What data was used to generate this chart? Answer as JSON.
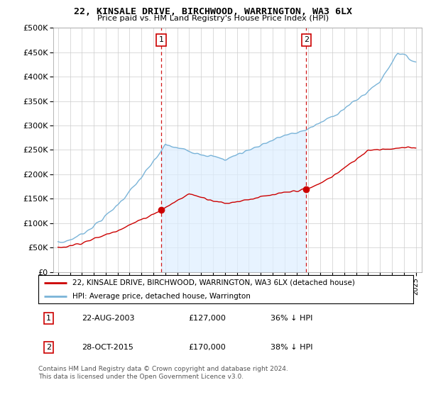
{
  "title": "22, KINSALE DRIVE, BIRCHWOOD, WARRINGTON, WA3 6LX",
  "subtitle": "Price paid vs. HM Land Registry's House Price Index (HPI)",
  "ylim": [
    0,
    500000
  ],
  "yticks": [
    0,
    50000,
    100000,
    150000,
    200000,
    250000,
    300000,
    350000,
    400000,
    450000,
    500000
  ],
  "ytick_labels": [
    "£0",
    "£50K",
    "£100K",
    "£150K",
    "£200K",
    "£250K",
    "£300K",
    "£350K",
    "£400K",
    "£450K",
    "£500K"
  ],
  "hpi_color": "#7ab4d8",
  "hpi_fill_color": "#ddeeff",
  "price_color": "#cc0000",
  "vline_color": "#cc0000",
  "background_color": "#ffffff",
  "legend_label_price": "22, KINSALE DRIVE, BIRCHWOOD, WARRINGTON, WA3 6LX (detached house)",
  "legend_label_hpi": "HPI: Average price, detached house, Warrington",
  "sale1_date_num": 2003.65,
  "sale1_price": 127000,
  "sale1_label": "1",
  "sale2_date_num": 2015.82,
  "sale2_price": 170000,
  "sale2_label": "2",
  "footnote": "Contains HM Land Registry data © Crown copyright and database right 2024.\nThis data is licensed under the Open Government Licence v3.0.",
  "table_rows": [
    {
      "num": "1",
      "date": "22-AUG-2003",
      "price": "£127,000",
      "hpi": "36% ↓ HPI"
    },
    {
      "num": "2",
      "date": "28-OCT-2015",
      "price": "£170,000",
      "hpi": "38% ↓ HPI"
    }
  ]
}
